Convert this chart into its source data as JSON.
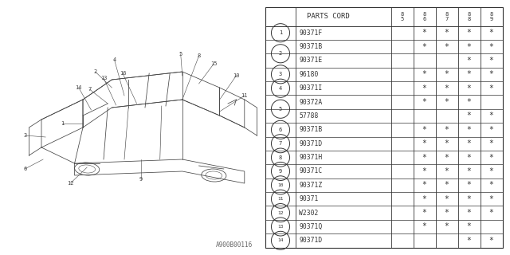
{
  "title": "PARTS CORD",
  "rows": [
    {
      "num": "1",
      "parts": [
        "90371F"
      ],
      "stars": [
        [
          "",
          "*",
          "*",
          "*",
          "*"
        ]
      ]
    },
    {
      "num": "2",
      "parts": [
        "90371B",
        "90371E"
      ],
      "stars": [
        [
          "",
          "*",
          "*",
          "*",
          "*"
        ],
        [
          "",
          "",
          "",
          "*",
          "*"
        ]
      ]
    },
    {
      "num": "3",
      "parts": [
        "96180"
      ],
      "stars": [
        [
          "",
          "*",
          "*",
          "*",
          "*"
        ]
      ]
    },
    {
      "num": "4",
      "parts": [
        "90371I"
      ],
      "stars": [
        [
          "",
          "*",
          "*",
          "*",
          "*"
        ]
      ]
    },
    {
      "num": "5",
      "parts": [
        "90372A",
        "57788"
      ],
      "stars": [
        [
          "",
          "*",
          "*",
          "*",
          ""
        ],
        [
          "",
          "",
          "",
          "*",
          "*"
        ]
      ]
    },
    {
      "num": "6",
      "parts": [
        "90371B"
      ],
      "stars": [
        [
          "",
          "*",
          "*",
          "*",
          "*"
        ]
      ]
    },
    {
      "num": "7",
      "parts": [
        "90371D"
      ],
      "stars": [
        [
          "",
          "*",
          "*",
          "*",
          "*"
        ]
      ]
    },
    {
      "num": "8",
      "parts": [
        "90371H"
      ],
      "stars": [
        [
          "",
          "*",
          "*",
          "*",
          "*"
        ]
      ]
    },
    {
      "num": "9",
      "parts": [
        "90371C"
      ],
      "stars": [
        [
          "",
          "*",
          "*",
          "*",
          "*"
        ]
      ]
    },
    {
      "num": "10",
      "parts": [
        "90371Z"
      ],
      "stars": [
        [
          "",
          "*",
          "*",
          "*",
          "*"
        ]
      ]
    },
    {
      "num": "11",
      "parts": [
        "90371"
      ],
      "stars": [
        [
          "",
          "*",
          "*",
          "*",
          "*"
        ]
      ]
    },
    {
      "num": "12",
      "parts": [
        "W2302"
      ],
      "stars": [
        [
          "",
          "*",
          "*",
          "*",
          "*"
        ]
      ]
    },
    {
      "num": "13",
      "parts": [
        "90371Q"
      ],
      "stars": [
        [
          "",
          "*",
          "*",
          "*",
          ""
        ]
      ]
    },
    {
      "num": "14",
      "parts": [
        "90371D"
      ],
      "stars": [
        [
          "",
          "",
          "",
          "*",
          "*"
        ]
      ]
    }
  ],
  "year_headers": [
    "8\n5",
    "8\n6",
    "8\n7",
    "8\n8",
    "8\n9"
  ],
  "bg_color": "#ffffff",
  "line_color": "#333333",
  "footer": "A900B00116"
}
